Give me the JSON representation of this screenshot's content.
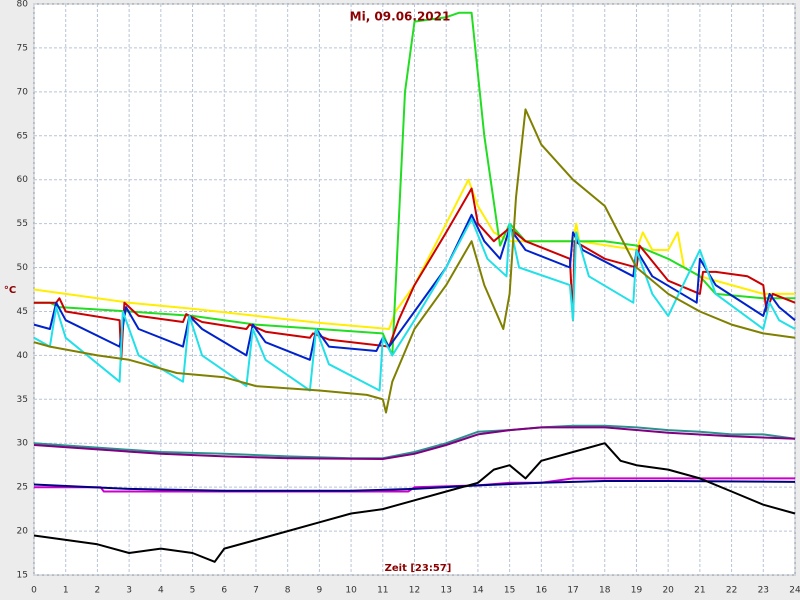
{
  "chart_data": {
    "type": "line",
    "title": "Mi, 09.06.2021",
    "y_label": "°C",
    "x_label": "Zeit [23:57]",
    "xlim": [
      0,
      24
    ],
    "xticks": [
      0,
      1,
      2,
      3,
      4,
      5,
      6,
      7,
      8,
      9,
      10,
      11,
      12,
      13,
      14,
      15,
      16,
      17,
      18,
      19,
      20,
      21,
      22,
      23,
      24
    ],
    "ylim": [
      15,
      80
    ],
    "yticks": [
      15,
      20,
      25,
      30,
      35,
      40,
      45,
      50,
      55,
      60,
      65,
      70,
      75,
      80
    ],
    "grid": true,
    "series": [
      {
        "color": "#ffee00",
        "x": [
          0,
          1,
          3,
          5,
          7,
          9,
          11.2,
          11.4,
          12,
          13,
          13.7,
          14,
          14.5,
          15,
          16,
          17,
          17.1,
          17.2,
          19,
          19.2,
          19.5,
          20,
          20.3,
          20.5,
          21,
          22,
          23,
          24
        ],
        "values": [
          47.5,
          47,
          46,
          45.3,
          44.5,
          43.7,
          43,
          45,
          48,
          55,
          60,
          57,
          54,
          53,
          53,
          53,
          55,
          53,
          52,
          54,
          52,
          52,
          54,
          50,
          49,
          48,
          47,
          47
        ]
      },
      {
        "color": "#22dd22",
        "x": [
          0,
          0.5,
          0.8,
          3,
          5,
          7,
          9,
          11,
          11.3,
          11.7,
          12,
          13,
          13.4,
          13.8,
          14.2,
          14.7,
          15,
          15.5,
          17,
          18,
          19,
          20,
          21,
          21.5,
          23,
          24
        ],
        "values": [
          46,
          46,
          45.5,
          45,
          44.5,
          43.5,
          43,
          42.5,
          40,
          70,
          78,
          78.5,
          79,
          79,
          65,
          52.5,
          55,
          53,
          53,
          53,
          52.5,
          51,
          49,
          47,
          46.5,
          46.5
        ]
      },
      {
        "color": "#cc0000",
        "x": [
          0,
          0.7,
          0.8,
          1,
          2.7,
          2.75,
          2.85,
          3.3,
          4.7,
          4.8,
          5.3,
          6.7,
          6.8,
          7.3,
          8.7,
          8.8,
          9.3,
          11.2,
          11.5,
          12,
          13,
          13.8,
          14,
          14.5,
          15,
          15.5,
          16.9,
          17,
          17.05,
          18,
          19,
          19.1,
          20,
          21,
          21.1,
          21.5,
          22.5,
          23,
          23.1,
          23.3,
          24
        ],
        "values": [
          46,
          46,
          46.5,
          45,
          44,
          39.5,
          46,
          44.5,
          43.8,
          44.7,
          43.8,
          43,
          43.5,
          42.7,
          42,
          42.5,
          41.8,
          41,
          44,
          48,
          54,
          59,
          55,
          53,
          54.5,
          53,
          51,
          44,
          53,
          51,
          50,
          52.5,
          48.5,
          47,
          49.5,
          49.5,
          49,
          48,
          45,
          47,
          46
        ]
      },
      {
        "color": "#0022cc",
        "x": [
          0,
          0.5,
          0.7,
          1,
          2.7,
          2.9,
          3.3,
          4.7,
          4.9,
          5.3,
          6.7,
          6.9,
          7.3,
          8.7,
          8.9,
          9.3,
          10.8,
          11,
          11.2,
          11.4,
          12,
          13,
          13.8,
          14.2,
          14.7,
          15,
          15.5,
          16.9,
          17,
          17.3,
          18.9,
          19,
          19.5,
          20.9,
          21,
          21.5,
          23,
          23.2,
          23.5,
          24
        ],
        "values": [
          43.5,
          43,
          46,
          44,
          41,
          45.5,
          43,
          41,
          44.5,
          43,
          40,
          43.5,
          41.5,
          39.5,
          43,
          41,
          40.5,
          42,
          41,
          42,
          45,
          50,
          56,
          53,
          51,
          54.5,
          52,
          50,
          54,
          52,
          49,
          52,
          49,
          46,
          51,
          48,
          44.5,
          47,
          45.5,
          44
        ]
      },
      {
        "color": "#22e0e8",
        "x": [
          0,
          0.5,
          0.7,
          1,
          2.7,
          2.8,
          3.3,
          4.7,
          4.9,
          5.3,
          6.7,
          6.9,
          7.3,
          8.7,
          8.9,
          9.3,
          10.9,
          11,
          11.3,
          12,
          13,
          13.8,
          14.3,
          14.9,
          15,
          15.3,
          16.9,
          17,
          17.1,
          17.5,
          18.9,
          19,
          19.5,
          20,
          21,
          21.5,
          23,
          23.2,
          23.5,
          24
        ],
        "values": [
          42,
          41,
          45.5,
          42,
          37,
          45,
          40,
          37,
          44.5,
          40,
          36.5,
          43,
          39.5,
          36,
          43,
          39,
          36,
          42,
          40,
          44,
          50,
          55.5,
          51,
          49,
          55,
          50,
          48,
          44,
          54,
          49,
          46,
          52,
          47,
          44.5,
          52,
          47,
          43,
          46,
          44,
          43
        ]
      },
      {
        "color": "#808000",
        "x": [
          0,
          0.5,
          2,
          3,
          4.5,
          6,
          7,
          9,
          10.5,
          11,
          11.1,
          11.3,
          12,
          13,
          13.8,
          14.2,
          14.8,
          15,
          15.2,
          15.5,
          16,
          17,
          18,
          19,
          20,
          21,
          22,
          23,
          24
        ],
        "values": [
          41.5,
          41,
          40,
          39.5,
          38,
          37.5,
          36.5,
          36,
          35.5,
          35,
          33.5,
          37,
          43,
          48,
          53,
          48,
          43,
          47,
          58,
          68,
          64,
          60,
          57,
          50,
          47,
          45,
          43.5,
          42.5,
          42
        ]
      },
      {
        "color": "#2f8f8f",
        "x": [
          0,
          2,
          4,
          6,
          8,
          10,
          11,
          12,
          13,
          14,
          15,
          16,
          17,
          18,
          19,
          20,
          21,
          22,
          23,
          24
        ],
        "values": [
          30,
          29.5,
          29,
          28.8,
          28.5,
          28.3,
          28.3,
          29,
          30,
          31.3,
          31.5,
          31.8,
          32,
          32,
          31.8,
          31.5,
          31.3,
          31,
          31,
          30.5
        ]
      },
      {
        "color": "#800080",
        "x": [
          0,
          2,
          4,
          6,
          8,
          11,
          12,
          13,
          14,
          15,
          16,
          18,
          20,
          22,
          24
        ],
        "values": [
          29.8,
          29.3,
          28.8,
          28.5,
          28.3,
          28.2,
          28.8,
          29.8,
          31,
          31.5,
          31.8,
          31.8,
          31.2,
          30.8,
          30.5
        ]
      },
      {
        "color": "#cc00cc",
        "x": [
          0,
          2.1,
          2.2,
          11,
          11.8,
          12,
          14,
          15,
          16,
          17,
          20,
          24
        ],
        "values": [
          25,
          25,
          24.5,
          24.5,
          24.5,
          25,
          25.2,
          25.5,
          25.5,
          26,
          26,
          26
        ]
      },
      {
        "color": "#000080",
        "x": [
          0,
          3,
          6,
          10,
          12,
          14,
          16,
          18,
          20,
          24
        ],
        "values": [
          25.3,
          24.8,
          24.6,
          24.6,
          24.8,
          25.2,
          25.5,
          25.7,
          25.7,
          25.6
        ]
      },
      {
        "color": "#000000",
        "x": [
          0,
          1,
          2,
          3,
          4,
          5,
          5.7,
          6,
          7,
          8,
          9,
          10,
          11,
          12,
          13,
          14,
          14.5,
          15,
          15.5,
          16,
          17,
          17.5,
          18,
          18.5,
          19,
          20,
          21,
          22,
          23,
          24
        ],
        "values": [
          19.5,
          19,
          18.5,
          17.5,
          18,
          17.5,
          16.5,
          18,
          19,
          20,
          21,
          22,
          22.5,
          23.5,
          24.5,
          25.5,
          27,
          27.5,
          26,
          28,
          29,
          29.5,
          30,
          28,
          27.5,
          27,
          26,
          24.5,
          23,
          22
        ]
      }
    ]
  }
}
